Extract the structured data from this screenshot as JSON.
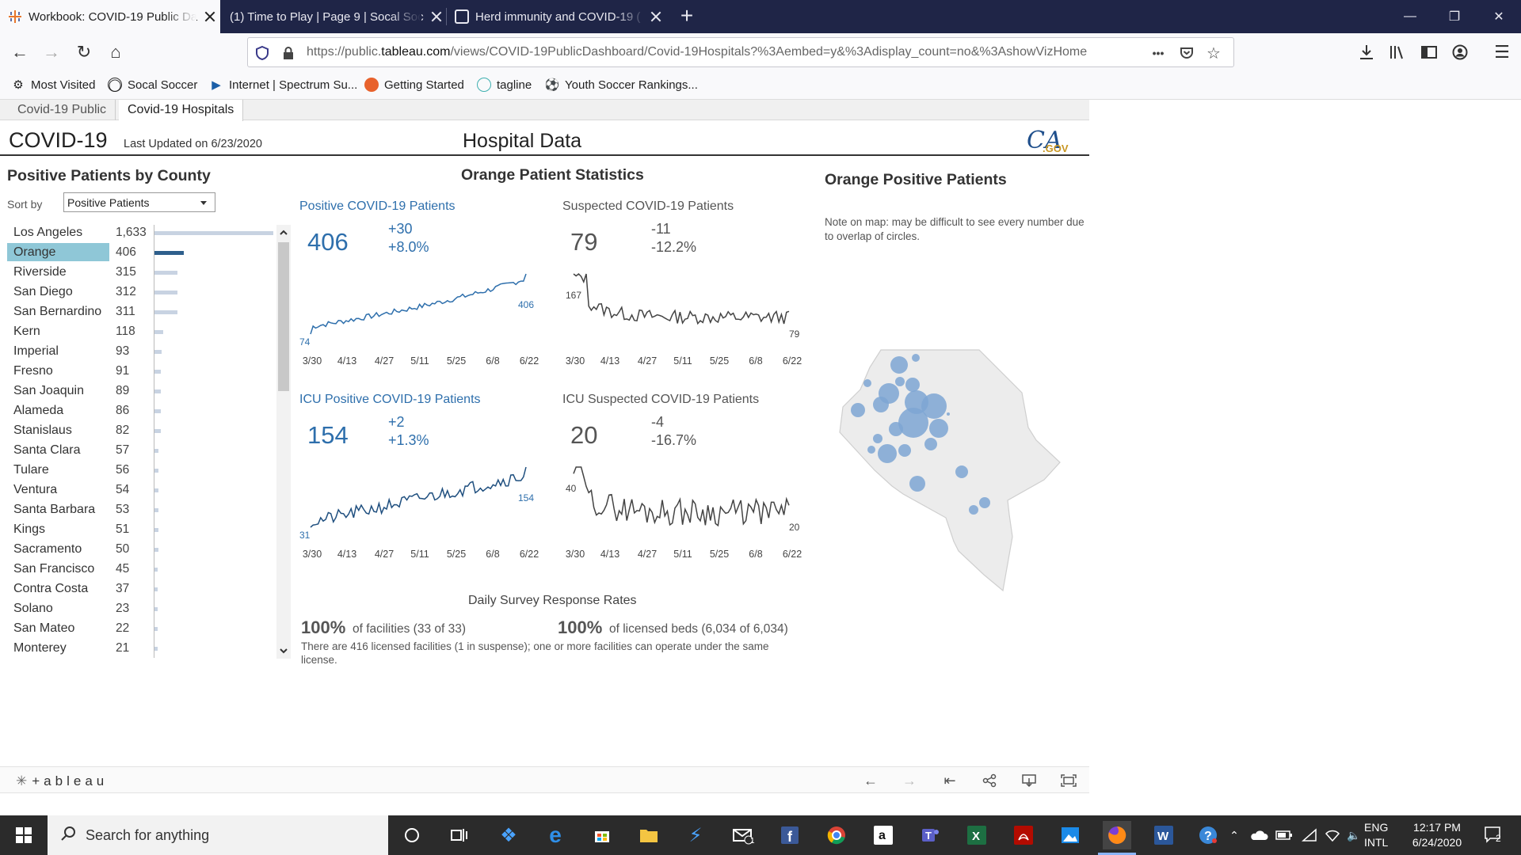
{
  "browser": {
    "tabs": [
      {
        "title": "Workbook: COVID-19 Public Da",
        "active": true
      },
      {
        "title": "(1) Time to Play | Page 9 | Socal Soc",
        "active": false
      },
      {
        "title": "Herd immunity and COVID-19 (",
        "active": false
      }
    ],
    "url_prefix": "https://public.",
    "url_domain": "tableau.com",
    "url_rest": "/views/COVID-19PublicDashboard/Covid-19Hospitals?%3Aembed=y&%3Adisplay_count=no&%3AshowVizHome",
    "url_more": "•••",
    "bookmarks": [
      "Most Visited",
      "Socal Soccer",
      "Internet | Spectrum Su...",
      "Getting Started",
      "tagline",
      "Youth Soccer Rankings..."
    ]
  },
  "dashboard": {
    "sheet_tabs": [
      "Covid-19 Public",
      "Covid-19 Hospitals"
    ],
    "title": "COVID-19",
    "updated": "Last Updated on 6/23/2020",
    "center_title": "Hospital Data",
    "logo_text": "CA",
    "logo_sub": ".GOV",
    "county_section": {
      "title": "Positive Patients by County",
      "sort_label": "Sort by",
      "sort_value": "Positive Patients",
      "selected": "Orange",
      "counties": [
        {
          "name": "Los Angeles",
          "label": "1,633",
          "value": 1633
        },
        {
          "name": "Orange",
          "label": "406",
          "value": 406
        },
        {
          "name": "Riverside",
          "label": "315",
          "value": 315
        },
        {
          "name": "San Diego",
          "label": "312",
          "value": 312
        },
        {
          "name": "San Bernardino",
          "label": "311",
          "value": 311
        },
        {
          "name": "Kern",
          "label": "118",
          "value": 118
        },
        {
          "name": "Imperial",
          "label": "93",
          "value": 93
        },
        {
          "name": "Fresno",
          "label": "91",
          "value": 91
        },
        {
          "name": "San Joaquin",
          "label": "89",
          "value": 89
        },
        {
          "name": "Alameda",
          "label": "86",
          "value": 86
        },
        {
          "name": "Stanislaus",
          "label": "82",
          "value": 82
        },
        {
          "name": "Santa Clara",
          "label": "57",
          "value": 57
        },
        {
          "name": "Tulare",
          "label": "56",
          "value": 56
        },
        {
          "name": "Ventura",
          "label": "54",
          "value": 54
        },
        {
          "name": "Santa Barbara",
          "label": "53",
          "value": 53
        },
        {
          "name": "Kings",
          "label": "51",
          "value": 51
        },
        {
          "name": "Sacramento",
          "label": "50",
          "value": 50
        },
        {
          "name": "San Francisco",
          "label": "45",
          "value": 45
        },
        {
          "name": "Contra Costa",
          "label": "37",
          "value": 37
        },
        {
          "name": "Solano",
          "label": "23",
          "value": 23
        },
        {
          "name": "San Mateo",
          "label": "22",
          "value": 22
        },
        {
          "name": "Monterey",
          "label": "21",
          "value": 21
        }
      ]
    },
    "stats_section": {
      "title": "Orange Patient Statistics",
      "x_ticks": [
        "3/30",
        "4/13",
        "4/27",
        "5/11",
        "5/25",
        "6/8",
        "6/22"
      ],
      "panels": [
        {
          "label": "Positive COVID-19 Patients",
          "value": "406",
          "delta_abs": "+30",
          "delta_pct": "+8.0%",
          "start_label": "74",
          "end_label": "406",
          "color": "#2e6fac"
        },
        {
          "label": "Suspected COVID-19 Patients",
          "value": "79",
          "delta_abs": "-11",
          "delta_pct": "-12.2%",
          "start_label": "167",
          "end_label": "79",
          "color": "#444444"
        },
        {
          "label": "ICU Positive COVID-19 Patients",
          "value": "154",
          "delta_abs": "+2",
          "delta_pct": "+1.3%",
          "start_label": "31",
          "end_label": "154",
          "color": "#1f4f7f"
        },
        {
          "label": "ICU Suspected COVID-19 Patients",
          "value": "20",
          "delta_abs": "-4",
          "delta_pct": "-16.7%",
          "start_label": "40",
          "end_label": "20",
          "color": "#444444"
        }
      ],
      "survey": {
        "title": "Daily Survey Response Rates",
        "facilities_pct": "100%",
        "facilities_text": "of facilities (33 of 33)",
        "beds_pct": "100%",
        "beds_text": "of licensed beds (6,034 of 6,034)",
        "note": "There are 416 licensed facilities (1 in suspense); one or more facilities can operate under the same license."
      }
    },
    "map_section": {
      "title": "Orange Positive Patients",
      "note": "Note on map: may be difficult to see every number due to overlap of circles."
    },
    "footer": {
      "brand": "+ableau"
    }
  },
  "taskbar": {
    "search_placeholder": "Search for anything",
    "lang_top": "ENG",
    "lang_bottom": "INTL",
    "time": "12:17 PM",
    "date": "6/24/2020",
    "notifications": "2",
    "mail_badge": "1"
  },
  "colors": {
    "accent_blue": "#2e6fac",
    "selected_row": "#8fc7d7",
    "bar_default": "#c8d3e2",
    "bar_selected": "#2e5f8c",
    "map_bubble": "#7ea6d4"
  }
}
